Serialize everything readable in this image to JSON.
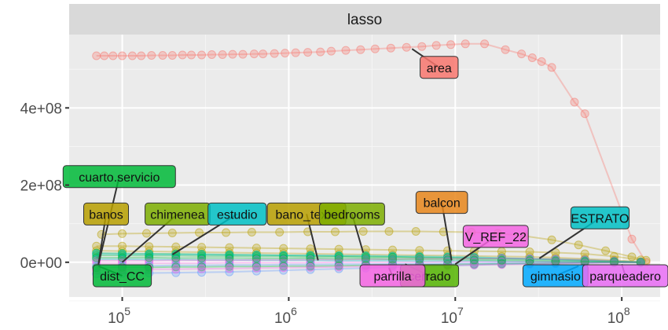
{
  "chart_data": {
    "type": "line",
    "panel": "lasso",
    "x_scale": "log",
    "xlim": [
      48000,
      170000000
    ],
    "ylim": [
      -90000000,
      590000000
    ],
    "x_ticks": [
      {
        "value": 100000,
        "mantissa": "10",
        "exp": "5"
      },
      {
        "value": 1000000,
        "mantissa": "10",
        "exp": "6"
      },
      {
        "value": 10000000,
        "mantissa": "10",
        "exp": "7"
      },
      {
        "value": 100000000,
        "mantissa": "10",
        "exp": "8"
      }
    ],
    "y_ticks": [
      {
        "value": 0,
        "label": "0e+00"
      },
      {
        "value": 200000000,
        "label": "2e+08"
      },
      {
        "value": 400000000,
        "label": "4e+08"
      }
    ],
    "grid": true,
    "series": [
      {
        "name": "area",
        "color": "#F8766D",
        "x": [
          70000,
          78000,
          88000,
          100000,
          115000,
          130000,
          150000,
          175000,
          200000,
          230000,
          260000,
          300000,
          345000,
          400000,
          460000,
          530000,
          620000,
          700000,
          820000,
          950000,
          1100000,
          1300000,
          1550000,
          1800000,
          2200000,
          2700000,
          3300000,
          4100000,
          5100000,
          6300000,
          7700000,
          9400000,
          11500000,
          15000000,
          20000000,
          25000000,
          29000000,
          33000000,
          38000000,
          52000000,
          60000000,
          115000000,
          140000000
        ],
        "y": [
          535000000,
          535000000,
          535000000,
          535000000,
          535000000,
          535000000,
          536000000,
          536000000,
          536000000,
          537000000,
          537000000,
          537000000,
          538000000,
          538000000,
          539000000,
          539000000,
          540000000,
          540000000,
          541000000,
          542000000,
          543000000,
          544000000,
          545000000,
          547000000,
          549000000,
          551000000,
          553000000,
          555000000,
          557000000,
          559000000,
          562000000,
          564000000,
          566000000,
          566000000,
          551000000,
          540000000,
          530000000,
          520000000,
          505000000,
          415000000,
          385000000,
          60000000,
          0
        ]
      },
      {
        "name": "bedrooms",
        "color": "#B79F00",
        "x": [
          75000,
          100000,
          140000,
          200000,
          290000,
          420000,
          600000,
          880000,
          1300000,
          1900000,
          2800000,
          4000000,
          5800000,
          8500000,
          12500000,
          18000000,
          26000000,
          38000000,
          55000000,
          80000000,
          115000000,
          140000000
        ],
        "y": [
          72000000,
          74000000,
          75000000,
          76000000,
          77000000,
          77000000,
          78000000,
          78000000,
          79000000,
          79000000,
          80000000,
          80000000,
          80000000,
          79000000,
          78000000,
          75000000,
          68000000,
          58000000,
          45000000,
          30000000,
          14000000,
          5000000
        ]
      },
      {
        "name": "banos",
        "color": "#B79F00",
        "x": [
          70000,
          100000,
          145000,
          210000,
          300000,
          440000,
          640000,
          930000,
          1350000,
          2000000,
          2900000,
          4200000,
          6100000,
          9000000,
          13000000,
          19000000,
          28000000,
          40000000,
          60000000,
          90000000,
          130000000
        ],
        "y": [
          42000000,
          42000000,
          41000000,
          40000000,
          39000000,
          38000000,
          37000000,
          36000000,
          35000000,
          34000000,
          33000000,
          32000000,
          31000000,
          30000000,
          29000000,
          28000000,
          27000000,
          25000000,
          22000000,
          15000000,
          6000000
        ]
      },
      {
        "name": "bano_texto",
        "color": "#B79F00",
        "x": [
          70000,
          100000,
          145000,
          210000,
          300000,
          440000,
          640000,
          930000,
          1350000,
          2000000,
          2900000,
          4200000,
          6100000,
          9000000,
          13000000,
          19000000,
          28000000,
          40000000,
          60000000,
          90000000,
          130000000
        ],
        "y": [
          30000000,
          29000000,
          28000000,
          27000000,
          26000000,
          25000000,
          24000000,
          23000000,
          22000000,
          21000000,
          20000000,
          19000000,
          18000000,
          17000000,
          16000000,
          15000000,
          14000000,
          12000000,
          9000000,
          5000000,
          1000000
        ]
      },
      {
        "name": "chimenea",
        "color": "#00BA38",
        "x": [
          70000,
          100000,
          145000,
          210000,
          300000,
          440000,
          640000,
          930000,
          1350000,
          2000000,
          2900000,
          4200000,
          6100000,
          9000000,
          13000000,
          19000000,
          28000000,
          40000000,
          60000000,
          90000000,
          130000000
        ],
        "y": [
          24000000,
          23000000,
          22000000,
          22000000,
          21000000,
          20000000,
          19000000,
          18000000,
          17000000,
          16000000,
          15000000,
          14000000,
          13000000,
          12000000,
          11000000,
          10000000,
          9000000,
          8000000,
          6000000,
          3000000,
          0
        ]
      },
      {
        "name": "cuarto.servicio",
        "color": "#00BA38",
        "x": [
          70000,
          100000,
          145000,
          210000,
          300000,
          440000,
          640000,
          930000,
          1350000,
          2000000,
          2900000,
          4200000,
          6100000,
          9000000,
          13000000,
          19000000,
          28000000,
          40000000,
          60000000,
          90000000,
          130000000
        ],
        "y": [
          18000000,
          18000000,
          17000000,
          17000000,
          16000000,
          16000000,
          15000000,
          15000000,
          14000000,
          14000000,
          13000000,
          13000000,
          12000000,
          11000000,
          10000000,
          9000000,
          8000000,
          7000000,
          5000000,
          2000000,
          0
        ]
      },
      {
        "name": "balcon",
        "color": "#00BFC4",
        "x": [
          70000,
          100000,
          145000,
          210000,
          300000,
          440000,
          640000,
          930000,
          1350000,
          2000000,
          2900000,
          4200000,
          6100000,
          9000000,
          13000000,
          19000000,
          28000000,
          40000000,
          60000000,
          90000000,
          130000000
        ],
        "y": [
          22000000,
          21000000,
          21000000,
          20000000,
          20000000,
          19000000,
          19000000,
          18000000,
          18000000,
          17000000,
          17000000,
          16000000,
          15000000,
          14000000,
          13000000,
          11000000,
          9000000,
          7000000,
          4000000,
          2000000,
          0
        ]
      },
      {
        "name": "estudio",
        "color": "#00BFC4",
        "x": [
          70000,
          100000,
          145000,
          210000,
          300000,
          440000,
          640000,
          930000,
          1350000,
          2000000,
          2900000,
          4200000,
          6100000,
          9000000,
          13000000,
          19000000,
          28000000,
          40000000,
          60000000,
          90000000,
          130000000
        ],
        "y": [
          8000000,
          8000000,
          7000000,
          7000000,
          6000000,
          6000000,
          5000000,
          5000000,
          5000000,
          4000000,
          4000000,
          4000000,
          3000000,
          3000000,
          3000000,
          2000000,
          2000000,
          1000000,
          1000000,
          0,
          0
        ]
      },
      {
        "name": "V_REF_22",
        "color": "#F564E3",
        "x": [
          70000,
          100000,
          145000,
          210000,
          300000,
          440000,
          640000,
          930000,
          1350000,
          2000000,
          2900000,
          4200000,
          6100000,
          9000000,
          13000000,
          19000000,
          28000000,
          40000000,
          60000000,
          90000000,
          130000000
        ],
        "y": [
          4000000,
          4000000,
          4000000,
          5000000,
          5000000,
          5000000,
          6000000,
          6000000,
          7000000,
          7000000,
          8000000,
          8000000,
          9000000,
          9000000,
          9000000,
          10000000,
          9000000,
          8000000,
          6000000,
          3000000,
          0
        ]
      },
      {
        "name": "parqueadero",
        "color": "#F564E3",
        "x": [
          70000,
          100000,
          145000,
          210000,
          300000,
          440000,
          640000,
          930000,
          1350000,
          2000000,
          2900000,
          4200000,
          6100000,
          9000000,
          13000000,
          19000000,
          28000000,
          40000000,
          60000000,
          90000000,
          130000000
        ],
        "y": [
          -2000000,
          -2000000,
          -2000000,
          -2000000,
          -2000000,
          -1000000,
          -1000000,
          -1000000,
          -1000000,
          0,
          0,
          0,
          0,
          1000000,
          1000000,
          1000000,
          1000000,
          1000000,
          0,
          0,
          0
        ]
      },
      {
        "name": "dist_CC",
        "color": "#619CFF",
        "x": [
          70000,
          100000,
          145000,
          210000,
          300000,
          440000,
          640000,
          930000,
          1350000,
          2000000,
          2900000,
          4200000,
          6100000,
          9000000,
          13000000,
          19000000,
          28000000,
          40000000,
          60000000,
          90000000,
          130000000
        ],
        "y": [
          -10000000,
          -9000000,
          -9000000,
          -8000000,
          -8000000,
          -7000000,
          -7000000,
          -6000000,
          -6000000,
          -5000000,
          -5000000,
          -4000000,
          -4000000,
          -3000000,
          -3000000,
          -2000000,
          -2000000,
          -1000000,
          -1000000,
          0,
          0
        ]
      },
      {
        "name": "gimnasio",
        "color": "#619CFF",
        "x": [
          70000,
          100000,
          145000,
          210000,
          300000,
          440000,
          640000,
          930000,
          1350000,
          2000000,
          2900000,
          4200000,
          6100000,
          9000000,
          13000000,
          19000000,
          28000000,
          40000000,
          60000000,
          90000000,
          130000000
        ],
        "y": [
          -30000000,
          -29000000,
          -28000000,
          -27000000,
          -26000000,
          -25000000,
          -23000000,
          -21000000,
          -19000000,
          -17000000,
          -15000000,
          -13000000,
          -11000000,
          -9000000,
          -7000000,
          -5000000,
          -4000000,
          -3000000,
          -2000000,
          -1000000,
          0
        ]
      },
      {
        "name": "ESTRATO",
        "color": "#00BA38",
        "x": [
          70000,
          100000,
          145000,
          210000,
          300000,
          440000,
          640000,
          930000,
          1350000,
          2000000,
          2900000,
          4200000,
          6100000,
          9000000,
          13000000,
          19000000,
          28000000,
          40000000,
          60000000,
          90000000,
          130000000
        ],
        "y": [
          -14000000,
          -13000000,
          -13000000,
          -12000000,
          -12000000,
          -11000000,
          -11000000,
          -10000000,
          -10000000,
          -9000000,
          -8000000,
          -8000000,
          -7000000,
          -6000000,
          -5000000,
          -4000000,
          -3000000,
          -2000000,
          -1000000,
          0,
          0
        ]
      },
      {
        "name": "parrilla",
        "color": "#F564E3",
        "x": [
          70000,
          100000,
          145000,
          210000,
          300000,
          440000,
          640000,
          930000,
          1350000,
          2000000,
          2900000,
          4200000,
          6100000,
          9000000,
          13000000,
          19000000,
          28000000,
          40000000,
          60000000,
          90000000,
          130000000
        ],
        "y": [
          -20000000,
          -19000000,
          -18000000,
          -18000000,
          -17000000,
          -16000000,
          -15000000,
          -14000000,
          -13000000,
          -12000000,
          -11000000,
          -10000000,
          -9000000,
          -8000000,
          -7000000,
          -6000000,
          -5000000,
          -3000000,
          -2000000,
          -1000000,
          0
        ]
      },
      {
        "name": "cerrado",
        "color": "#00BA38",
        "x": [
          70000,
          100000,
          145000,
          210000,
          300000,
          440000,
          640000,
          930000,
          1350000,
          2000000,
          2900000,
          4200000,
          6100000,
          9000000,
          13000000,
          19000000,
          28000000,
          40000000,
          60000000,
          90000000,
          130000000
        ],
        "y": [
          12000000,
          12000000,
          12000000,
          11000000,
          11000000,
          11000000,
          10000000,
          10000000,
          10000000,
          9000000,
          9000000,
          8000000,
          8000000,
          7000000,
          6000000,
          5000000,
          4000000,
          3000000,
          2000000,
          1000000,
          0
        ]
      }
    ],
    "labels": [
      {
        "text": "area",
        "color": "#F8766D",
        "box": [
          8000000,
          505000000
        ],
        "anchor": [
          5500000,
          553000000
        ]
      },
      {
        "text": "cuarto.servicio",
        "color": "#00BA38",
        "box": [
          96000,
          222000000
        ],
        "anchor": [
          72000,
          -5000000
        ]
      },
      {
        "text": "banos",
        "color": "#B79F00",
        "box": [
          80000,
          125000000
        ],
        "anchor": [
          72000,
          -5000000
        ]
      },
      {
        "text": "chimenea",
        "color": "#7CAE00",
        "box": [
          215000,
          125000000
        ],
        "anchor": [
          100000,
          0
        ]
      },
      {
        "text": "estudio",
        "color": "#00BFC4",
        "box": [
          490000,
          125000000
        ],
        "anchor": [
          200000,
          20000000
        ]
      },
      {
        "text": "bano_texto",
        "color": "#B79F00",
        "box": [
          1280000,
          125000000
        ],
        "anchor": [
          1500000,
          5000000
        ]
      },
      {
        "text": "bedrooms",
        "color": "#7CAE00",
        "box": [
          2400000,
          125000000
        ],
        "anchor": [
          2800000,
          25000000
        ]
      },
      {
        "text": "balcon",
        "color": "#E7861B",
        "box": [
          8300000,
          155000000
        ],
        "anchor": [
          9500000,
          5000000
        ]
      },
      {
        "text": "V_REF_22",
        "color": "#F564E3",
        "box": [
          17500000,
          67000000
        ],
        "anchor": [
          10000000,
          -5000000
        ]
      },
      {
        "text": "ESTRATO",
        "color": "#00BFC4",
        "box": [
          74000000,
          115000000
        ],
        "anchor": [
          32000000,
          10000000
        ]
      },
      {
        "text": "dist_CC",
        "color": "#00BA38",
        "box": [
          100000,
          -35000000
        ],
        "anchor": [
          72000,
          -10000000
        ]
      },
      {
        "text": "cerrado",
        "color": "#53B400",
        "box": [
          7000000,
          -35000000
        ],
        "anchor": [
          5000000,
          -5000000
        ]
      },
      {
        "text": "parrilla",
        "color": "#F564E3",
        "box": [
          4200000,
          -35000000
        ],
        "anchor": [
          4000000,
          -15000000
        ]
      },
      {
        "text": "gimnasio",
        "color": "#00A9FF",
        "box": [
          40000000,
          -35000000
        ],
        "anchor": [
          55000000,
          -10000000
        ]
      },
      {
        "text": "parqueadero",
        "color": "#E76BF3",
        "box": [
          105000000,
          -35000000
        ],
        "anchor": [
          100000000,
          -5000000
        ]
      }
    ]
  }
}
